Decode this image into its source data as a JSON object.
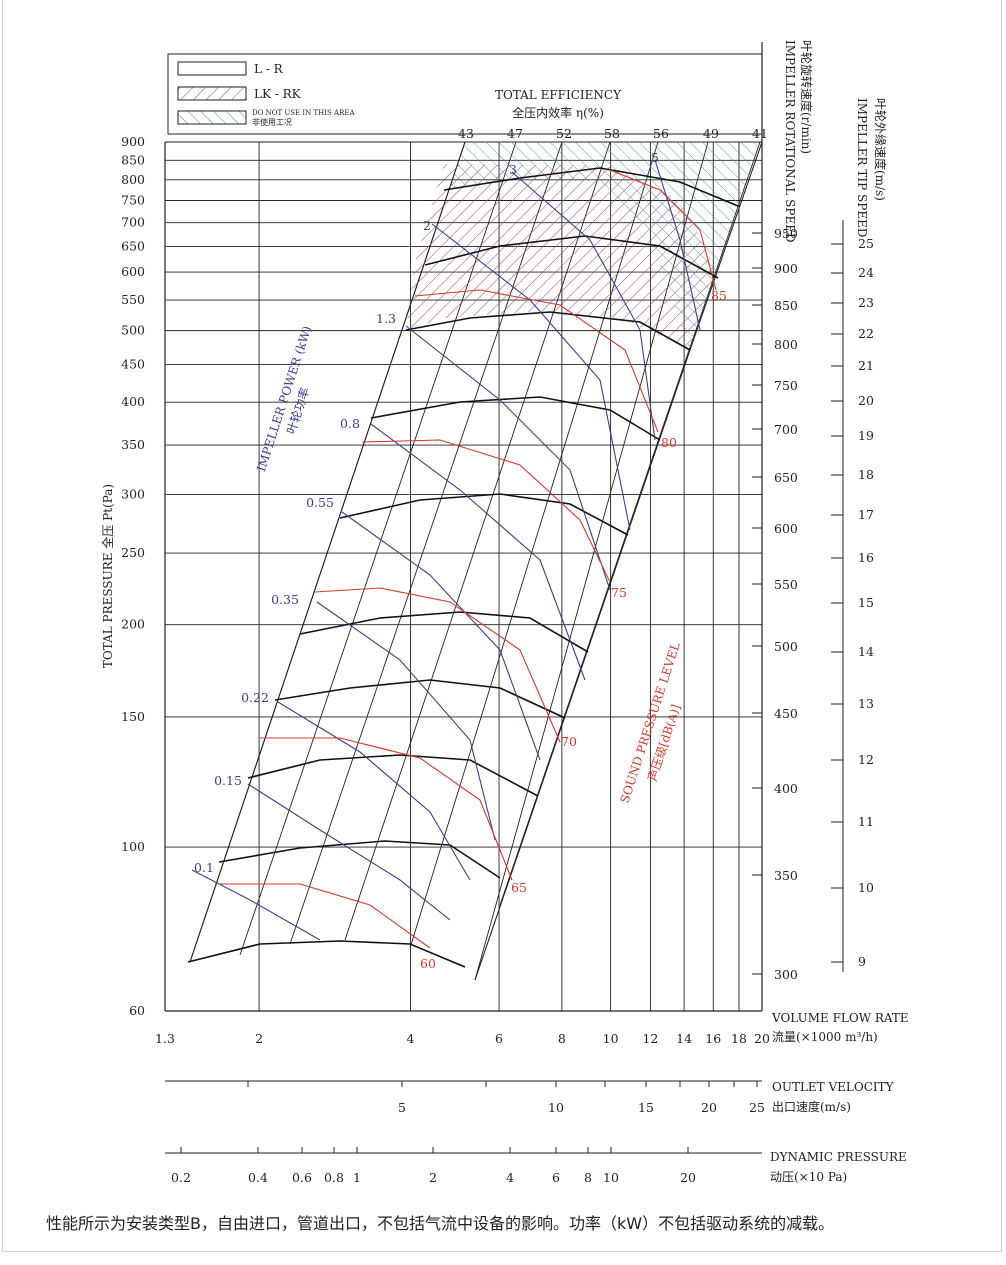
{
  "chart_data": {
    "type": "line",
    "x_axis": {
      "label_en": "VOLUME FLOW RATE",
      "label_cn": "流量(×1000 m³/h)",
      "scale": "log",
      "range": [
        1.3,
        20
      ],
      "ticks": [
        1.3,
        2,
        4,
        6,
        8,
        10,
        12,
        14,
        16,
        18,
        20
      ],
      "tick_labels": [
        "1.3",
        "2",
        "4",
        "6",
        "8",
        "10",
        "12",
        "14",
        "16",
        "18",
        "20"
      ]
    },
    "y_axis": {
      "label": "TOTAL PRESSURE 全压 Pt(Pa)",
      "scale": "log",
      "range": [
        60,
        900
      ],
      "ticks": [
        60,
        100,
        150,
        200,
        250,
        300,
        350,
        400,
        450,
        500,
        550,
        600,
        650,
        700,
        750,
        800,
        850,
        900
      ]
    },
    "outlet_velocity_axis": {
      "label_en": "OUTLET VELOCITY",
      "label_cn": "出口速度(m/s)",
      "ticks": [
        "5",
        "10",
        "15",
        "20",
        "25"
      ]
    },
    "dynamic_pressure_axis": {
      "label_en": "DYNAMIC PRESSURE",
      "label_cn": "动压(×10 Pa)",
      "ticks": [
        "0.2",
        "0.4",
        "0.6",
        "0.8",
        "1",
        "2",
        "4",
        "6",
        "8",
        "10",
        "20"
      ]
    },
    "rotational_speed_axis": {
      "label_en": "IMPELLER ROTATIONAL SPEED",
      "label_cn": "叶轮旋转速度(r/min)",
      "ticks": [
        "300",
        "350",
        "400",
        "450",
        "500",
        "550",
        "600",
        "650",
        "700",
        "750",
        "800",
        "850",
        "900",
        "950"
      ]
    },
    "tip_speed_axis": {
      "label_en": "IMPELLER TIP SPEED",
      "label_cn": "叶轮外缘速度(m/s)",
      "ticks": [
        "9",
        "10",
        "11",
        "12",
        "13",
        "14",
        "15",
        "16",
        "17",
        "18",
        "19",
        "20",
        "21",
        "22",
        "23",
        "24",
        "25"
      ]
    },
    "efficiency": {
      "label_en": "TOTAL EFFICIENCY",
      "label_cn": "全压内效率  η(%)",
      "ticks": [
        "43",
        "47",
        "52",
        "58",
        "56",
        "49",
        "41"
      ]
    },
    "power": {
      "label_en": "IMPELLER POWER (kW)",
      "label_cn": "叶轮功率",
      "values": [
        "0.1",
        "0.15",
        "0.22",
        "0.35",
        "0.55",
        "0.8",
        "1.3",
        "2",
        "3",
        "5"
      ]
    },
    "sound": {
      "label_en": "SOUND PRESSURE LEVEL",
      "label_cn": "声压级[dB(A)]",
      "values": [
        "60",
        "65",
        "70",
        "75",
        "80",
        "85"
      ]
    },
    "legend": [
      {
        "name": "L - R",
        "style": "plain"
      },
      {
        "name": "LK - RK",
        "style": "purple-hatch"
      },
      {
        "name": "DO NOT USE IN THIS AREA",
        "name_cn": "非使用工况",
        "style": "teal-hatch"
      }
    ],
    "colors": {
      "sound": "#d23a2c",
      "power": "#3a3f8c",
      "lk_hatch": "#a0407a",
      "nouse_hatch": "#3a9a8a",
      "fan_curve": "#111111"
    }
  },
  "caption": "性能所示为安装类型B，自由进口，管道出口，不包括气流中设备的影响。功率（kW）不包括驱动系统的减载。"
}
